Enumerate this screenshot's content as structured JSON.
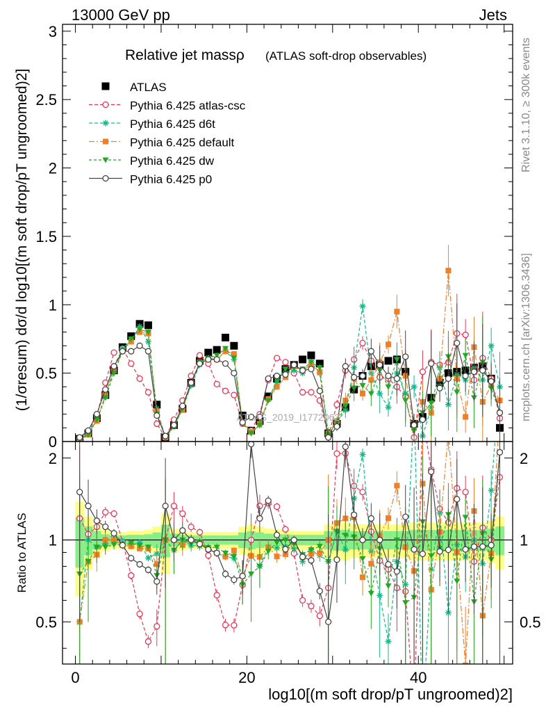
{
  "chart_data": {
    "type": "line",
    "header_left": "13000 GeV pp",
    "header_right": "Jets",
    "title": "Relative jet massρ",
    "subtitle": "(ATLAS soft-drop observables)",
    "watermark": "ATLAS_2019_I1772062",
    "side_rivet": "Rivet 3.1.10, ≥ 300k events",
    "side_mcplots": "mcplots.cern.ch [arXiv:1306.3436]",
    "ylabel_top": "(1/σresum) dσ/d log10[(m soft drop/pT ungroomed)2]",
    "ylabel_bottom": "Ratio to ATLAS",
    "xlabel": "log10[(m soft drop/pT ungroomed)2]",
    "x_ticks": [
      "0",
      "20",
      "40"
    ],
    "y_ticks_top": [
      "0",
      "0.5",
      "1",
      "1.5",
      "2",
      "2.5",
      "3"
    ],
    "y_ticks_ratio": [
      "0.5",
      "1",
      "2"
    ],
    "xlim": [
      -1.5,
      51
    ],
    "ylim_top": [
      0,
      3.05
    ],
    "ylim_ratio": [
      0.35,
      2.3
    ],
    "x": [
      0.5,
      1.5,
      2.5,
      3.5,
      4.5,
      5.5,
      6.5,
      7.5,
      8.5,
      9.5,
      10.5,
      11.5,
      12.5,
      13.5,
      14.5,
      15.5,
      16.5,
      17.5,
      18.5,
      19.5,
      20.5,
      21.5,
      22.5,
      23.5,
      24.5,
      25.5,
      26.5,
      27.5,
      28.5,
      29.5,
      30.5,
      31.5,
      32.5,
      33.5,
      34.5,
      35.5,
      36.5,
      37.5,
      38.5,
      39.5,
      40.5,
      41.5,
      42.5,
      43.5,
      44.5,
      45.5,
      46.5,
      47.5,
      48.5,
      49.5
    ],
    "series": [
      {
        "name": "ATLAS",
        "color": "#000000",
        "marker": "square",
        "values": [
          0.02,
          0.06,
          0.17,
          0.34,
          0.52,
          0.69,
          0.77,
          0.86,
          0.85,
          0.27,
          0.03,
          0.12,
          0.24,
          0.43,
          0.59,
          0.65,
          0.67,
          0.76,
          0.7,
          0.19,
          0.08,
          0.15,
          0.33,
          0.46,
          0.53,
          0.56,
          0.6,
          0.63,
          0.57,
          0.06,
          0.13,
          0.25,
          0.38,
          0.48,
          0.55,
          0.56,
          0.59,
          0.6,
          0.51,
          0.13,
          0.18,
          0.32,
          0.43,
          0.5,
          0.51,
          0.52,
          0.54,
          0.55,
          0.46,
          0.1
        ]
      },
      {
        "name": "Pythia 6.425 atlas-csc",
        "color": "#ee3355",
        "marker": "open-circle",
        "values": [
          0.024,
          0.063,
          0.19,
          0.43,
          0.65,
          0.68,
          0.57,
          0.46,
          0.36,
          0.13,
          0.03,
          0.16,
          0.3,
          0.48,
          0.63,
          0.57,
          0.42,
          0.37,
          0.34,
          0.13,
          0.08,
          0.2,
          0.45,
          0.61,
          0.58,
          0.5,
          0.36,
          0.36,
          0.3,
          0.04,
          0.27,
          0.52,
          0.6,
          0.72,
          0.59,
          0.47,
          0.46,
          0.4,
          0.33,
          0.03,
          0.51,
          0.58,
          0.56,
          0.58,
          0.79,
          0.78,
          0.45,
          0.61,
          0.46,
          0.17
        ]
      },
      {
        "name": "Pythia 6.425 d6t",
        "color": "#11bb88",
        "marker": "star",
        "values": [
          0.01,
          0.06,
          0.16,
          0.33,
          0.55,
          0.68,
          0.74,
          0.84,
          0.73,
          0.24,
          0.03,
          0.11,
          0.24,
          0.41,
          0.56,
          0.61,
          0.6,
          0.66,
          0.6,
          0.14,
          0.07,
          0.12,
          0.31,
          0.43,
          0.5,
          0.52,
          0.5,
          0.58,
          0.5,
          0.05,
          0.14,
          0.23,
          0.54,
          0.99,
          0.5,
          0.35,
          0.25,
          0.5,
          0.35,
          0.4,
          0.04,
          0.25,
          0.54,
          0.27,
          0.49,
          0.45,
          0.54,
          0.45,
          0.7,
          0.4
        ]
      },
      {
        "name": "Pythia 6.425 default",
        "color": "#f07f28",
        "marker": "square",
        "values": [
          0.01,
          0.05,
          0.15,
          0.34,
          0.52,
          0.66,
          0.73,
          0.8,
          0.79,
          0.22,
          0.03,
          0.12,
          0.23,
          0.43,
          0.58,
          0.6,
          0.6,
          0.66,
          0.64,
          0.14,
          0.07,
          0.13,
          0.31,
          0.4,
          0.47,
          0.55,
          0.52,
          0.56,
          0.51,
          0.06,
          0.15,
          0.3,
          0.46,
          0.35,
          0.45,
          0.58,
          0.71,
          0.95,
          0.48,
          0.1,
          0.29,
          0.21,
          0.46,
          1.25,
          0.46,
          0.18,
          0.69,
          0.29,
          0.41,
          0.3
        ]
      },
      {
        "name": "Pythia 6.425 dw",
        "color": "#22aa22",
        "marker": "triangle-down",
        "values": [
          0.015,
          0.05,
          0.16,
          0.32,
          0.5,
          0.66,
          0.75,
          0.82,
          0.8,
          0.2,
          0.03,
          0.11,
          0.24,
          0.42,
          0.58,
          0.61,
          0.63,
          0.68,
          0.61,
          0.13,
          0.06,
          0.12,
          0.3,
          0.45,
          0.53,
          0.54,
          0.53,
          0.58,
          0.54,
          0.05,
          0.14,
          0.26,
          0.39,
          0.41,
          0.35,
          0.52,
          0.4,
          0.6,
          0.3,
          0.08,
          0.21,
          0.28,
          0.4,
          0.62,
          0.36,
          0.63,
          0.32,
          0.58,
          0.39,
          0.21
        ]
      },
      {
        "name": "Pythia 6.425 p0",
        "color": "#444444",
        "marker": "open-circle",
        "values": [
          0.03,
          0.08,
          0.2,
          0.38,
          0.55,
          0.66,
          0.66,
          0.7,
          0.66,
          0.19,
          0.04,
          0.12,
          0.26,
          0.43,
          0.57,
          0.6,
          0.6,
          0.57,
          0.5,
          0.14,
          0.18,
          0.18,
          0.46,
          0.48,
          0.49,
          0.56,
          0.52,
          0.53,
          0.37,
          0.03,
          0.11,
          0.55,
          0.47,
          0.48,
          0.66,
          0.56,
          0.48,
          0.46,
          0.62,
          0.12,
          0.16,
          0.57,
          0.39,
          0.46,
          0.72,
          0.48,
          0.51,
          0.52,
          0.44,
          0.21
        ]
      }
    ],
    "band_rel_err": [
      0.38,
      0.22,
      0.14,
      0.09,
      0.07,
      0.07,
      0.08,
      0.08,
      0.09,
      0.12,
      0.25,
      0.1,
      0.08,
      0.07,
      0.07,
      0.07,
      0.07,
      0.07,
      0.07,
      0.12,
      0.14,
      0.12,
      0.1,
      0.09,
      0.09,
      0.08,
      0.08,
      0.08,
      0.08,
      0.14,
      0.16,
      0.16,
      0.14,
      0.14,
      0.14,
      0.14,
      0.14,
      0.14,
      0.14,
      0.16,
      0.16,
      0.16,
      0.16,
      0.16,
      0.16,
      0.16,
      0.16,
      0.16,
      0.18,
      0.22
    ]
  }
}
